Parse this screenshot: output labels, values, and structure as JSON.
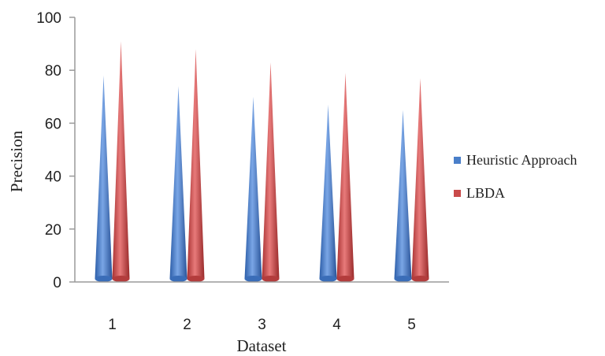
{
  "chart_data": {
    "type": "bar",
    "style": "3d-cone",
    "xlabel": "Dataset",
    "ylabel": "Precision",
    "ylim": [
      0,
      100
    ],
    "yticks": [
      0,
      20,
      40,
      60,
      80,
      100
    ],
    "categories": [
      "1",
      "2",
      "3",
      "4",
      "5"
    ],
    "series": [
      {
        "name": "Heuristic Approach",
        "color": "#4a7fc9",
        "values": [
          78,
          74,
          70,
          67,
          65
        ]
      },
      {
        "name": "LBDA",
        "color": "#c94a4a",
        "values": [
          91,
          88,
          83,
          79,
          77
        ]
      }
    ],
    "grid": false,
    "legend_position": "right"
  }
}
